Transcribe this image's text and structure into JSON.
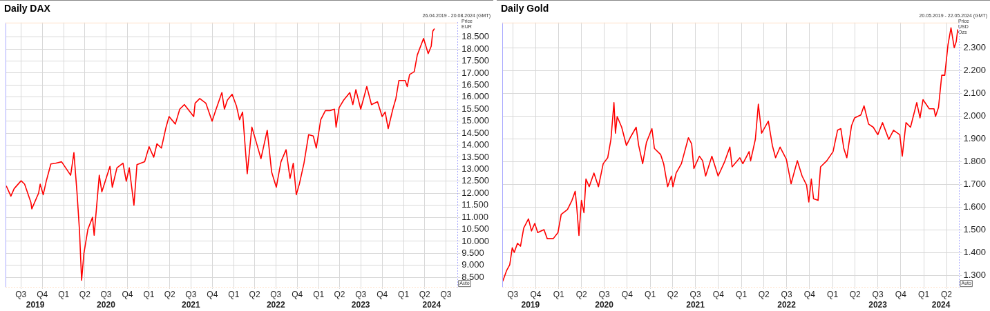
{
  "chart_data": [
    {
      "type": "line",
      "title": "Daily DAX",
      "subtitle": "26.04.2019 - 20.08.2024 (GMT)",
      "ylabel": "Price EUR",
      "annotations": [
        "Auto"
      ],
      "grid": true,
      "x": [
        "2019-04-29",
        "2019-05-19",
        "2019-06-02",
        "2019-07-02",
        "2019-07-17",
        "2019-08-13",
        "2019-08-17",
        "2019-09-15",
        "2019-09-22",
        "2019-10-05",
        "2019-10-18",
        "2019-11-07",
        "2019-11-27",
        "2019-12-23",
        "2020-01-31",
        "2020-02-14",
        "2020-02-27",
        "2020-03-09",
        "2020-03-18",
        "2020-03-28",
        "2020-04-14",
        "2020-05-04",
        "2020-05-11",
        "2020-06-02",
        "2020-06-13",
        "2020-07-18",
        "2020-07-28",
        "2020-08-17",
        "2020-09-12",
        "2020-09-26",
        "2020-10-09",
        "2020-10-29",
        "2020-11-11",
        "2020-12-14",
        "2021-01-02",
        "2021-01-22",
        "2021-02-05",
        "2021-02-24",
        "2021-03-16",
        "2021-03-29",
        "2021-04-25",
        "2021-05-14",
        "2021-06-03",
        "2021-07-13",
        "2021-07-19",
        "2021-08-08",
        "2021-09-03",
        "2021-09-30",
        "2021-10-13",
        "2021-11-11",
        "2021-11-22",
        "2021-12-05",
        "2021-12-25",
        "2022-01-13",
        "2022-01-26",
        "2022-02-08",
        "2022-02-28",
        "2022-03-20",
        "2022-04-08",
        "2022-04-28",
        "2022-05-25",
        "2022-06-13",
        "2022-07-03",
        "2022-07-23",
        "2022-08-14",
        "2022-08-31",
        "2022-09-14",
        "2022-09-27",
        "2022-10-10",
        "2022-10-30",
        "2022-11-19",
        "2022-12-09",
        "2022-12-22",
        "2023-01-10",
        "2023-01-30",
        "2023-02-19",
        "2023-03-10",
        "2023-03-17",
        "2023-03-30",
        "2023-04-19",
        "2023-05-15",
        "2023-05-28",
        "2023-06-10",
        "2023-07-01",
        "2023-07-27",
        "2023-08-16",
        "2023-09-11",
        "2023-10-01",
        "2023-10-14",
        "2023-10-27",
        "2023-11-16",
        "2023-11-29",
        "2023-12-12",
        "2024-01-08",
        "2024-01-17",
        "2024-01-27",
        "2024-02-16",
        "2024-02-29",
        "2024-03-27",
        "2024-04-16",
        "2024-04-29",
        "2024-05-06",
        "2024-05-13"
      ],
      "series": [
        {
          "color": "#ff0000",
          "values": [
            12310,
            11880,
            12190,
            12520,
            12380,
            11620,
            11350,
            12000,
            12380,
            11940,
            12500,
            13220,
            13250,
            13310,
            12750,
            13690,
            12060,
            10440,
            8380,
            9500,
            10500,
            11000,
            10250,
            12750,
            12060,
            13120,
            12250,
            13060,
            13250,
            12500,
            13060,
            11500,
            13190,
            13310,
            13940,
            13500,
            14060,
            13880,
            14750,
            15190,
            14880,
            15500,
            15690,
            15190,
            15750,
            15940,
            15750,
            15000,
            15380,
            16190,
            15500,
            15880,
            16120,
            15620,
            15060,
            15380,
            12810,
            14750,
            14120,
            13440,
            14620,
            12880,
            12250,
            13310,
            13810,
            12620,
            13250,
            11940,
            12380,
            13250,
            14440,
            14380,
            13880,
            15060,
            15440,
            15440,
            15500,
            14750,
            15560,
            15880,
            16190,
            15690,
            16310,
            15500,
            16440,
            15690,
            15810,
            15190,
            15380,
            14690,
            15500,
            15940,
            16690,
            16690,
            16440,
            16940,
            17060,
            17750,
            18440,
            17810,
            18120,
            18750,
            18850
          ]
        }
      ],
      "xlim": [
        "2019-04-26",
        "2024-08-20"
      ],
      "ylim": [
        8100,
        19100
      ],
      "xticks": [
        {
          "value": "2019-07-01",
          "label": "Q3"
        },
        {
          "value": "2019-10-01",
          "label": "Q4"
        },
        {
          "value": "2020-01-01",
          "label": "Q1"
        },
        {
          "value": "2020-04-01",
          "label": "Q2"
        },
        {
          "value": "2020-07-01",
          "label": "Q3"
        },
        {
          "value": "2020-10-01",
          "label": "Q4"
        },
        {
          "value": "2021-01-01",
          "label": "Q1"
        },
        {
          "value": "2021-04-01",
          "label": "Q2"
        },
        {
          "value": "2021-07-01",
          "label": "Q3"
        },
        {
          "value": "2021-10-01",
          "label": "Q4"
        },
        {
          "value": "2022-01-01",
          "label": "Q1"
        },
        {
          "value": "2022-04-01",
          "label": "Q2"
        },
        {
          "value": "2022-07-01",
          "label": "Q3"
        },
        {
          "value": "2022-10-01",
          "label": "Q4"
        },
        {
          "value": "2023-01-01",
          "label": "Q1"
        },
        {
          "value": "2023-04-01",
          "label": "Q2"
        },
        {
          "value": "2023-07-01",
          "label": "Q3"
        },
        {
          "value": "2023-10-01",
          "label": "Q4"
        },
        {
          "value": "2024-01-01",
          "label": "Q1"
        },
        {
          "value": "2024-04-01",
          "label": "Q2"
        },
        {
          "value": "2024-07-01",
          "label": "Q3"
        }
      ],
      "x2lim": [
        "2019-04-26",
        "2024-08-20"
      ],
      "x2ticks": [
        {
          "value": "2019-09-01",
          "label": "2019"
        },
        {
          "value": "2020-07-01",
          "label": "2020"
        },
        {
          "value": "2021-07-01",
          "label": "2021"
        },
        {
          "value": "2022-07-01",
          "label": "2022"
        },
        {
          "value": "2023-07-01",
          "label": "2023"
        },
        {
          "value": "2024-05-01",
          "label": "2024"
        }
      ],
      "yticks": [
        {
          "value": 8500,
          "label": "8.500"
        },
        {
          "value": 9000,
          "label": "9.000"
        },
        {
          "value": 9500,
          "label": "9.500"
        },
        {
          "value": 10000,
          "label": "10.000"
        },
        {
          "value": 10500,
          "label": "10.500"
        },
        {
          "value": 11000,
          "label": "11.000"
        },
        {
          "value": 11500,
          "label": "11.500"
        },
        {
          "value": 12000,
          "label": "12.000"
        },
        {
          "value": 12500,
          "label": "12.500"
        },
        {
          "value": 13000,
          "label": "13.000"
        },
        {
          "value": 13500,
          "label": "13.500"
        },
        {
          "value": 14000,
          "label": "14.000"
        },
        {
          "value": 14500,
          "label": "14.500"
        },
        {
          "value": 15000,
          "label": "15.000"
        },
        {
          "value": 15500,
          "label": "15.500"
        },
        {
          "value": 16000,
          "label": "16.000"
        },
        {
          "value": 16500,
          "label": "16.500"
        },
        {
          "value": 17000,
          "label": "17.000"
        },
        {
          "value": 17500,
          "label": "17.500"
        },
        {
          "value": 18000,
          "label": "18.000"
        },
        {
          "value": 18500,
          "label": "18.500"
        }
      ]
    },
    {
      "type": "line",
      "title": "Daily Gold",
      "subtitle": "20.05.2019 - 22.05.2024 (GMT)",
      "ylabel": "Price USD Ozs",
      "annotations": [
        "Auto"
      ],
      "grid": true,
      "x": [
        "2019-05-22",
        "2019-06-06",
        "2019-06-19",
        "2019-06-29",
        "2019-07-07",
        "2019-07-20",
        "2019-08-01",
        "2019-08-14",
        "2019-09-02",
        "2019-09-14",
        "2019-09-27",
        "2019-10-09",
        "2019-11-03",
        "2019-11-16",
        "2019-12-10",
        "2019-12-29",
        "2020-01-11",
        "2020-02-05",
        "2020-02-23",
        "2020-03-07",
        "2020-03-13",
        "2020-03-22",
        "2020-04-01",
        "2020-04-11",
        "2020-04-19",
        "2020-05-02",
        "2020-05-21",
        "2020-06-08",
        "2020-06-27",
        "2020-07-15",
        "2020-07-28",
        "2020-08-09",
        "2020-08-15",
        "2020-08-22",
        "2020-09-09",
        "2020-09-28",
        "2020-10-16",
        "2020-11-06",
        "2020-11-16",
        "2020-12-02",
        "2020-12-17",
        "2021-01-08",
        "2021-01-18",
        "2021-02-12",
        "2021-02-24",
        "2021-03-12",
        "2021-03-27",
        "2021-04-02",
        "2021-04-15",
        "2021-05-06",
        "2021-06-03",
        "2021-06-16",
        "2021-06-25",
        "2021-07-17",
        "2021-07-30",
        "2021-08-11",
        "2021-09-05",
        "2021-09-30",
        "2021-10-25",
        "2021-11-16",
        "2021-11-25",
        "2021-12-26",
        "2022-01-07",
        "2022-02-01",
        "2022-02-07",
        "2022-02-26",
        "2022-03-10",
        "2022-03-23",
        "2022-04-19",
        "2022-05-05",
        "2022-05-18",
        "2022-06-05",
        "2022-06-30",
        "2022-07-19",
        "2022-08-13",
        "2022-09-01",
        "2022-09-19",
        "2022-09-28",
        "2022-10-08",
        "2022-10-17",
        "2022-11-04",
        "2022-11-14",
        "2022-12-09",
        "2023-01-03",
        "2023-01-21",
        "2023-02-03",
        "2023-02-15",
        "2023-02-27",
        "2023-03-18",
        "2023-03-30",
        "2023-04-24",
        "2023-05-07",
        "2023-05-25",
        "2023-06-13",
        "2023-07-01",
        "2023-07-20",
        "2023-08-14",
        "2023-09-02",
        "2023-09-27",
        "2023-10-07",
        "2023-10-22",
        "2023-11-09",
        "2023-12-04",
        "2023-12-17",
        "2023-12-29",
        "2024-01-23",
        "2024-02-11",
        "2024-02-17",
        "2024-02-29",
        "2024-03-13",
        "2024-03-25",
        "2024-04-07",
        "2024-04-19",
        "2024-05-02",
        "2024-05-10",
        "2024-05-16"
      ],
      "series": [
        {
          "color": "#ff0000",
          "values": [
            1275,
            1321,
            1348,
            1422,
            1402,
            1442,
            1429,
            1509,
            1549,
            1496,
            1529,
            1489,
            1502,
            1462,
            1462,
            1489,
            1569,
            1590,
            1630,
            1670,
            1603,
            1476,
            1630,
            1576,
            1724,
            1690,
            1750,
            1690,
            1791,
            1817,
            1898,
            2059,
            1925,
            1998,
            1951,
            1871,
            1911,
            1951,
            1871,
            1791,
            1884,
            1945,
            1858,
            1831,
            1791,
            1690,
            1737,
            1690,
            1750,
            1791,
            1905,
            1878,
            1770,
            1824,
            1804,
            1737,
            1824,
            1737,
            1797,
            1864,
            1777,
            1817,
            1791,
            1844,
            1804,
            1898,
            2052,
            1925,
            1978,
            1871,
            1817,
            1864,
            1811,
            1703,
            1804,
            1737,
            1697,
            1623,
            1724,
            1637,
            1630,
            1777,
            1804,
            1844,
            1938,
            1945,
            1858,
            1817,
            1958,
            1992,
            2005,
            2045,
            1965,
            1951,
            1918,
            1971,
            1898,
            1938,
            1918,
            1824,
            1971,
            1951,
            2059,
            1992,
            2072,
            2032,
            2032,
            1998,
            2038,
            2179,
            2179,
            2313,
            2387,
            2300,
            2327,
            2380
          ]
        }
      ],
      "xlim": [
        "2019-05-20",
        "2024-05-22"
      ],
      "ylim": [
        1250,
        2410
      ],
      "xticks": [
        {
          "value": "2019-07-01",
          "label": "Q3"
        },
        {
          "value": "2019-10-01",
          "label": "Q4"
        },
        {
          "value": "2020-01-01",
          "label": "Q1"
        },
        {
          "value": "2020-04-01",
          "label": "Q2"
        },
        {
          "value": "2020-07-01",
          "label": "Q3"
        },
        {
          "value": "2020-10-01",
          "label": "Q4"
        },
        {
          "value": "2021-01-01",
          "label": "Q1"
        },
        {
          "value": "2021-04-01",
          "label": "Q2"
        },
        {
          "value": "2021-07-01",
          "label": "Q3"
        },
        {
          "value": "2021-10-01",
          "label": "Q4"
        },
        {
          "value": "2022-01-01",
          "label": "Q1"
        },
        {
          "value": "2022-04-01",
          "label": "Q2"
        },
        {
          "value": "2022-07-01",
          "label": "Q3"
        },
        {
          "value": "2022-10-01",
          "label": "Q4"
        },
        {
          "value": "2023-01-01",
          "label": "Q1"
        },
        {
          "value": "2023-04-01",
          "label": "Q2"
        },
        {
          "value": "2023-07-01",
          "label": "Q3"
        },
        {
          "value": "2023-10-01",
          "label": "Q4"
        },
        {
          "value": "2024-01-01",
          "label": "Q1"
        },
        {
          "value": "2024-04-01",
          "label": "Q2"
        }
      ],
      "x2lim": [
        "2019-05-20",
        "2024-05-22"
      ],
      "x2ticks": [
        {
          "value": "2019-09-10",
          "label": "2019"
        },
        {
          "value": "2020-07-01",
          "label": "2020"
        },
        {
          "value": "2021-07-01",
          "label": "2021"
        },
        {
          "value": "2022-07-01",
          "label": "2022"
        },
        {
          "value": "2023-07-01",
          "label": "2023"
        },
        {
          "value": "2024-03-10",
          "label": "2024"
        }
      ],
      "yticks": [
        {
          "value": 1300,
          "label": "1.300"
        },
        {
          "value": 1400,
          "label": "1.400"
        },
        {
          "value": 1500,
          "label": "1.500"
        },
        {
          "value": 1600,
          "label": "1.600"
        },
        {
          "value": 1700,
          "label": "1.700"
        },
        {
          "value": 1800,
          "label": "1.800"
        },
        {
          "value": 1900,
          "label": "1.900"
        },
        {
          "value": 2000,
          "label": "2.000"
        },
        {
          "value": 2100,
          "label": "2.100"
        },
        {
          "value": 2200,
          "label": "2.200"
        },
        {
          "value": 2300,
          "label": "2.300"
        }
      ]
    }
  ]
}
